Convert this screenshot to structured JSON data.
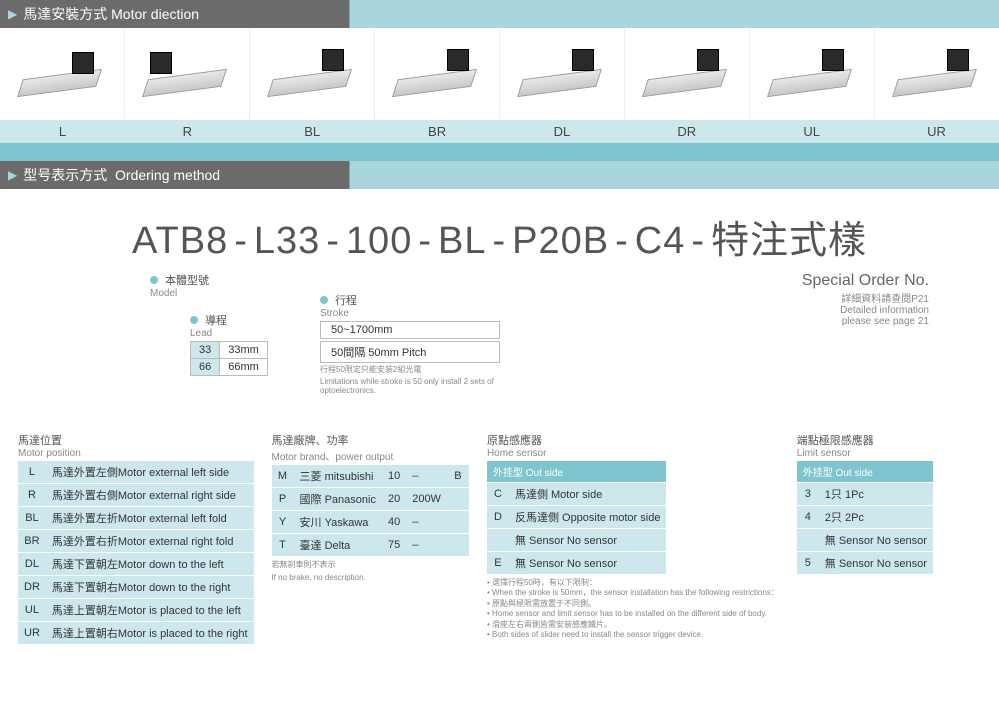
{
  "sections": {
    "motor_direction": {
      "zh": "馬達安裝方式",
      "en": "Motor diection"
    },
    "ordering": {
      "zh": "型号表示方式",
      "en": "Ordering method"
    }
  },
  "motor_positions": [
    "L",
    "R",
    "BL",
    "BR",
    "DL",
    "DR",
    "UL",
    "UR"
  ],
  "order_code": {
    "parts": [
      "ATB8",
      "L33",
      "100",
      "BL",
      "P20B",
      "C4",
      "特注式樣"
    ]
  },
  "callouts": {
    "model": {
      "zh": "本體型號",
      "en": "Model"
    },
    "lead": {
      "zh": "導程",
      "en": "Lead"
    },
    "stroke": {
      "zh": "行程",
      "en": "Stroke"
    },
    "special": {
      "zh": "Special Order No.",
      "line1": "詳細資料請查閱P21",
      "line2": "Detailed information",
      "line3": "please see page 21"
    }
  },
  "lead_table": [
    {
      "code": "33",
      "val": "33mm"
    },
    {
      "code": "66",
      "val": "66mm"
    }
  ],
  "stroke": {
    "range": "50~1700mm",
    "pitch": "50間隔 50mm Pitch",
    "note_zh": "行程50限定只能安装2組光電",
    "note_en": "Limitations while stroke is 50 only install 2 sets of optoelectronics."
  },
  "motor_pos_table": {
    "title_zh": "馬達位置",
    "title_en": "Motor position",
    "rows": [
      {
        "c": "L",
        "d": "馬達外置左側Motor external left side"
      },
      {
        "c": "R",
        "d": "馬達外置右側Motor external right side"
      },
      {
        "c": "BL",
        "d": "馬達外置左折Motor external left fold"
      },
      {
        "c": "BR",
        "d": "馬達外置右折Motor external right fold"
      },
      {
        "c": "DL",
        "d": "馬達下置朝左Motor down to the left"
      },
      {
        "c": "DR",
        "d": "馬達下置朝右Motor down to the right"
      },
      {
        "c": "UL",
        "d": "馬達上置朝左Motor is placed to the left"
      },
      {
        "c": "UR",
        "d": "馬達上置朝右Motor is placed to the right"
      }
    ]
  },
  "motor_brand_table": {
    "title_zh": "馬達廠牌、功率",
    "title_en": "Motor brand、power output",
    "rows": [
      {
        "c": "M",
        "d": "三菱 mitsubishi",
        "p": "10",
        "w": "–",
        "b": "B"
      },
      {
        "c": "P",
        "d": "國際 Panasonic",
        "p": "20",
        "w": "200W",
        "b": ""
      },
      {
        "c": "Y",
        "d": "安川 Yaskawa",
        "p": "40",
        "w": "–",
        "b": ""
      },
      {
        "c": "T",
        "d": "臺達 Delta",
        "p": "75",
        "w": "–",
        "b": ""
      }
    ],
    "note_zh": "若無刹車則不表示",
    "note_en": "If no brake, no description."
  },
  "home_sensor_table": {
    "title_zh": "原點感應器",
    "title_en": "Home sensor",
    "header": "外挂型 Out side",
    "rows": [
      {
        "c": "C",
        "d": "馬達側 Motor side"
      },
      {
        "c": "D",
        "d": "反馬達側 Opposite motor side"
      },
      {
        "c": "",
        "d": "無 Sensor No sensor"
      },
      {
        "c": "E",
        "d": "無 Sensor No sensor"
      }
    ]
  },
  "limit_sensor_table": {
    "title_zh": "端點極限感應器",
    "title_en": "Limit sensor",
    "header": "外挂型 Out side",
    "rows": [
      {
        "c": "3",
        "d": "1只 1Pc"
      },
      {
        "c": "4",
        "d": "2只 2Pc"
      },
      {
        "c": "",
        "d": "無 Sensor No sensor"
      },
      {
        "c": "5",
        "d": "無 Sensor No sensor"
      }
    ]
  },
  "footnotes": [
    "選擇行程50時，有以下限制：",
    "When the stroke is 50mm，the sensor installation has the following restrictions：",
    "原點與極限需放置于不同側。",
    "Home sensor and limit sensor has to be installed on the different side of body.",
    "滑座左右兩側皆需安装感應鐵片。",
    "Both sides of slider need to install the sensor trigger device."
  ],
  "colors": {
    "teal_light": "#cde8ed",
    "teal_mid": "#7fc5d0",
    "grey_hdr": "#6b6b6b"
  }
}
